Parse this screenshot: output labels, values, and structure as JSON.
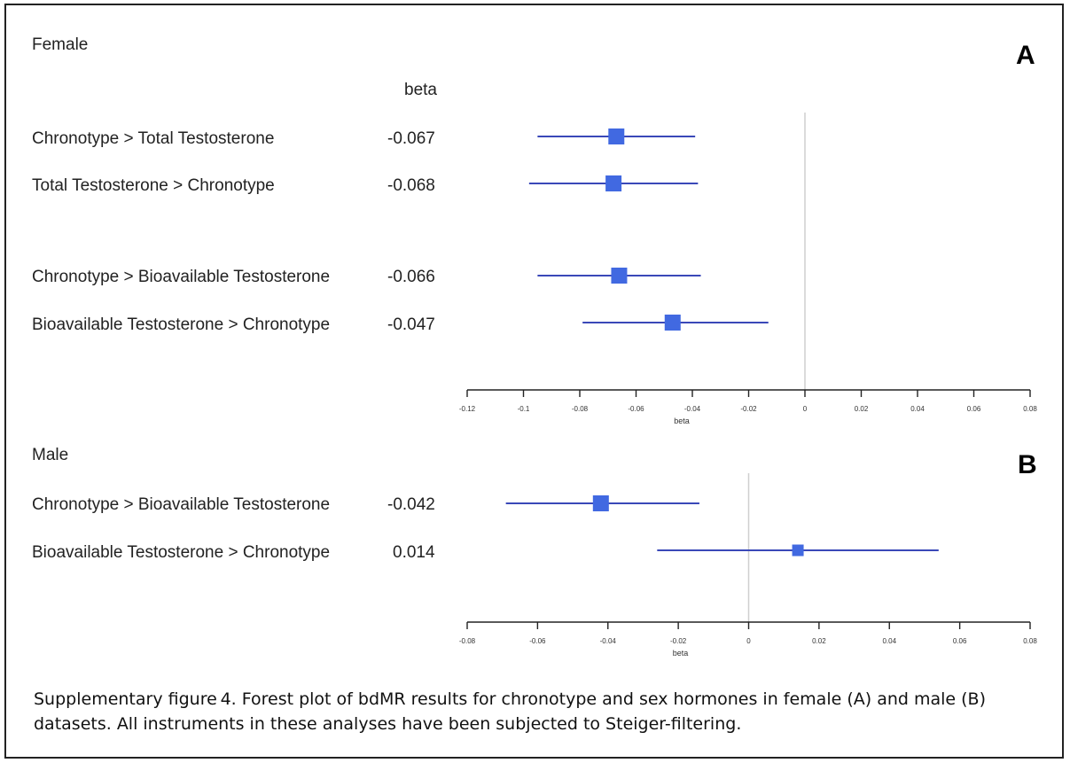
{
  "chart_data": [
    {
      "type": "forest",
      "group": "Female",
      "panel": "A",
      "value_header": "beta",
      "xlabel": "beta",
      "xlim": [
        -0.12,
        0.08
      ],
      "xticks": [
        "-0.12",
        "-0.1",
        "-0.08",
        "-0.06",
        "-0.04",
        "-0.02",
        "0",
        "0.02",
        "0.04",
        "0.06",
        "0.08"
      ],
      "rows": [
        {
          "label": "Chronotype > Total Testosterone",
          "value_text": "-0.067",
          "beta": -0.067,
          "ci": [
            -0.095,
            -0.039
          ]
        },
        {
          "label": "Total Testosterone > Chronotype",
          "value_text": "-0.068",
          "beta": -0.068,
          "ci": [
            -0.098,
            -0.038
          ]
        },
        {
          "label": "Chronotype > Bioavailable Testosterone",
          "value_text": "-0.066",
          "beta": -0.066,
          "ci": [
            -0.095,
            -0.037
          ]
        },
        {
          "label": "Bioavailable Testosterone > Chronotype",
          "value_text": "-0.047",
          "beta": -0.047,
          "ci": [
            -0.079,
            -0.013
          ]
        }
      ]
    },
    {
      "type": "forest",
      "group": "Male",
      "panel": "B",
      "xlabel": "beta",
      "xlim": [
        -0.08,
        0.08
      ],
      "xticks": [
        "-0.08",
        "-0.06",
        "-0.04",
        "-0.02",
        "0",
        "0.02",
        "0.04",
        "0.06",
        "0.08"
      ],
      "rows": [
        {
          "label": "Chronotype > Bioavailable Testosterone",
          "value_text": "-0.042",
          "beta": -0.042,
          "ci": [
            -0.069,
            -0.014
          ]
        },
        {
          "label": "Bioavailable Testosterone > Chronotype",
          "value_text": "0.014",
          "beta": 0.014,
          "ci": [
            -0.026,
            0.054
          ]
        }
      ]
    }
  ],
  "caption": "Supplementary figure 4. Forest plot of bdMR results for chronotype and sex hormones in female (A) and male (B) datasets. All instruments in these analyses have been subjected to Steiger-filtering.",
  "colors": {
    "marker": "#4169e1",
    "ci_line": "#3a48b8",
    "axis": "#222222",
    "zero_line": "#cfcfcf"
  }
}
